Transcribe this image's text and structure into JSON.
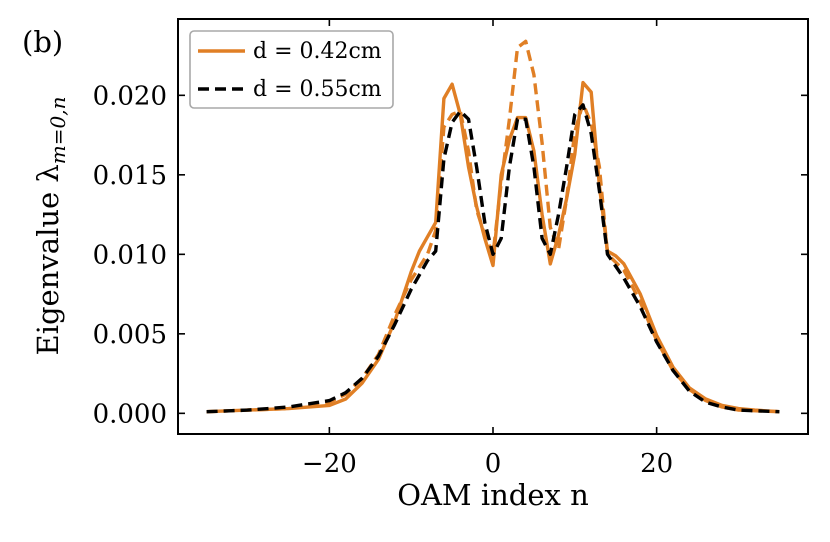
{
  "panel_label": "(b)",
  "chart_data": {
    "type": "line",
    "xlabel": "OAM index n",
    "ylabel": "Eigenvalue λ",
    "ylabel_subscript": "m=0,n",
    "xlim": [
      -38.5,
      38.5
    ],
    "ylim": [
      -0.0013,
      0.0248
    ],
    "xticks": [
      -20,
      0,
      20
    ],
    "xtick_labels": [
      "−20",
      "0",
      "20"
    ],
    "yticks": [
      0.0,
      0.005,
      0.01,
      0.015,
      0.02
    ],
    "ytick_labels": [
      "0.000",
      "0.005",
      "0.010",
      "0.015",
      "0.020"
    ],
    "legend_position": "top-left",
    "legend": [
      {
        "label": "d = 0.42cm",
        "color": "#e07f25",
        "dash": "solid"
      },
      {
        "label": "d = 0.55cm",
        "color": "#000000",
        "dash": "dashed"
      }
    ],
    "series": [
      {
        "name": "d = 0.42cm",
        "style": "solid",
        "color": "#e07f25",
        "x": [
          -35,
          -30,
          -25,
          -20,
          -18,
          -16,
          -14,
          -12,
          -10,
          -9,
          -8,
          -7,
          -6,
          -5,
          -4,
          -3,
          -2,
          -1,
          0,
          1,
          2,
          3,
          4,
          5,
          6,
          7,
          8,
          9,
          10,
          11,
          12,
          13,
          14,
          15,
          16,
          18,
          20,
          22,
          24,
          26,
          28,
          30,
          32,
          35
        ],
        "y": [
          0.0001,
          0.0002,
          0.0003,
          0.0005,
          0.0009,
          0.0019,
          0.0034,
          0.0058,
          0.0089,
          0.0102,
          0.0111,
          0.012,
          0.0198,
          0.0207,
          0.0188,
          0.0155,
          0.013,
          0.011,
          0.0093,
          0.015,
          0.0172,
          0.0186,
          0.0186,
          0.0165,
          0.0125,
          0.0094,
          0.0112,
          0.0135,
          0.0163,
          0.0208,
          0.0202,
          0.0143,
          0.0102,
          0.0099,
          0.0094,
          0.0075,
          0.0049,
          0.0029,
          0.0016,
          0.0009,
          0.0005,
          0.0003,
          0.0002,
          0.0001
        ]
      },
      {
        "name": "d = 0.42cm (dashed)",
        "style": "dashed",
        "color": "#e07f25",
        "x": [
          -35,
          -30,
          -25,
          -20,
          -18,
          -16,
          -14,
          -12,
          -10,
          -8,
          -7,
          -6,
          -5,
          -4,
          -3,
          -2,
          -1,
          0,
          1,
          2,
          3,
          4,
          5,
          6,
          7,
          8,
          9,
          10,
          11,
          12,
          13,
          14,
          16,
          18,
          20,
          22,
          24,
          26,
          28,
          30,
          35
        ],
        "y": [
          0.0001,
          0.0002,
          0.0003,
          0.0007,
          0.0012,
          0.0022,
          0.0037,
          0.0062,
          0.0084,
          0.01,
          0.0115,
          0.018,
          0.0188,
          0.019,
          0.0165,
          0.0128,
          0.0112,
          0.01,
          0.0145,
          0.0185,
          0.023,
          0.0234,
          0.0213,
          0.017,
          0.0117,
          0.0103,
          0.0135,
          0.0177,
          0.0195,
          0.0182,
          0.0155,
          0.01,
          0.009,
          0.007,
          0.0046,
          0.0027,
          0.0015,
          0.0008,
          0.0004,
          0.0002,
          0.0001
        ]
      },
      {
        "name": "d = 0.55cm",
        "style": "dashed",
        "color": "#000000",
        "x": [
          -35,
          -30,
          -25,
          -20,
          -18,
          -16,
          -14,
          -12,
          -10,
          -8,
          -7,
          -6,
          -5,
          -4,
          -3,
          -2,
          -1,
          0,
          1,
          2,
          3,
          4,
          5,
          6,
          7,
          8,
          9,
          10,
          11,
          12,
          13,
          14,
          16,
          18,
          20,
          22,
          24,
          26,
          28,
          30,
          35
        ],
        "y": [
          0.0001,
          0.0002,
          0.0004,
          0.0008,
          0.0013,
          0.0022,
          0.0036,
          0.0056,
          0.0078,
          0.0096,
          0.0102,
          0.016,
          0.0183,
          0.019,
          0.0185,
          0.0155,
          0.012,
          0.01,
          0.011,
          0.0155,
          0.0185,
          0.0185,
          0.0155,
          0.011,
          0.01,
          0.0125,
          0.0155,
          0.0188,
          0.0194,
          0.0176,
          0.014,
          0.01,
          0.0085,
          0.0067,
          0.0045,
          0.0027,
          0.0014,
          0.0007,
          0.0004,
          0.0002,
          0.0001
        ]
      }
    ]
  }
}
